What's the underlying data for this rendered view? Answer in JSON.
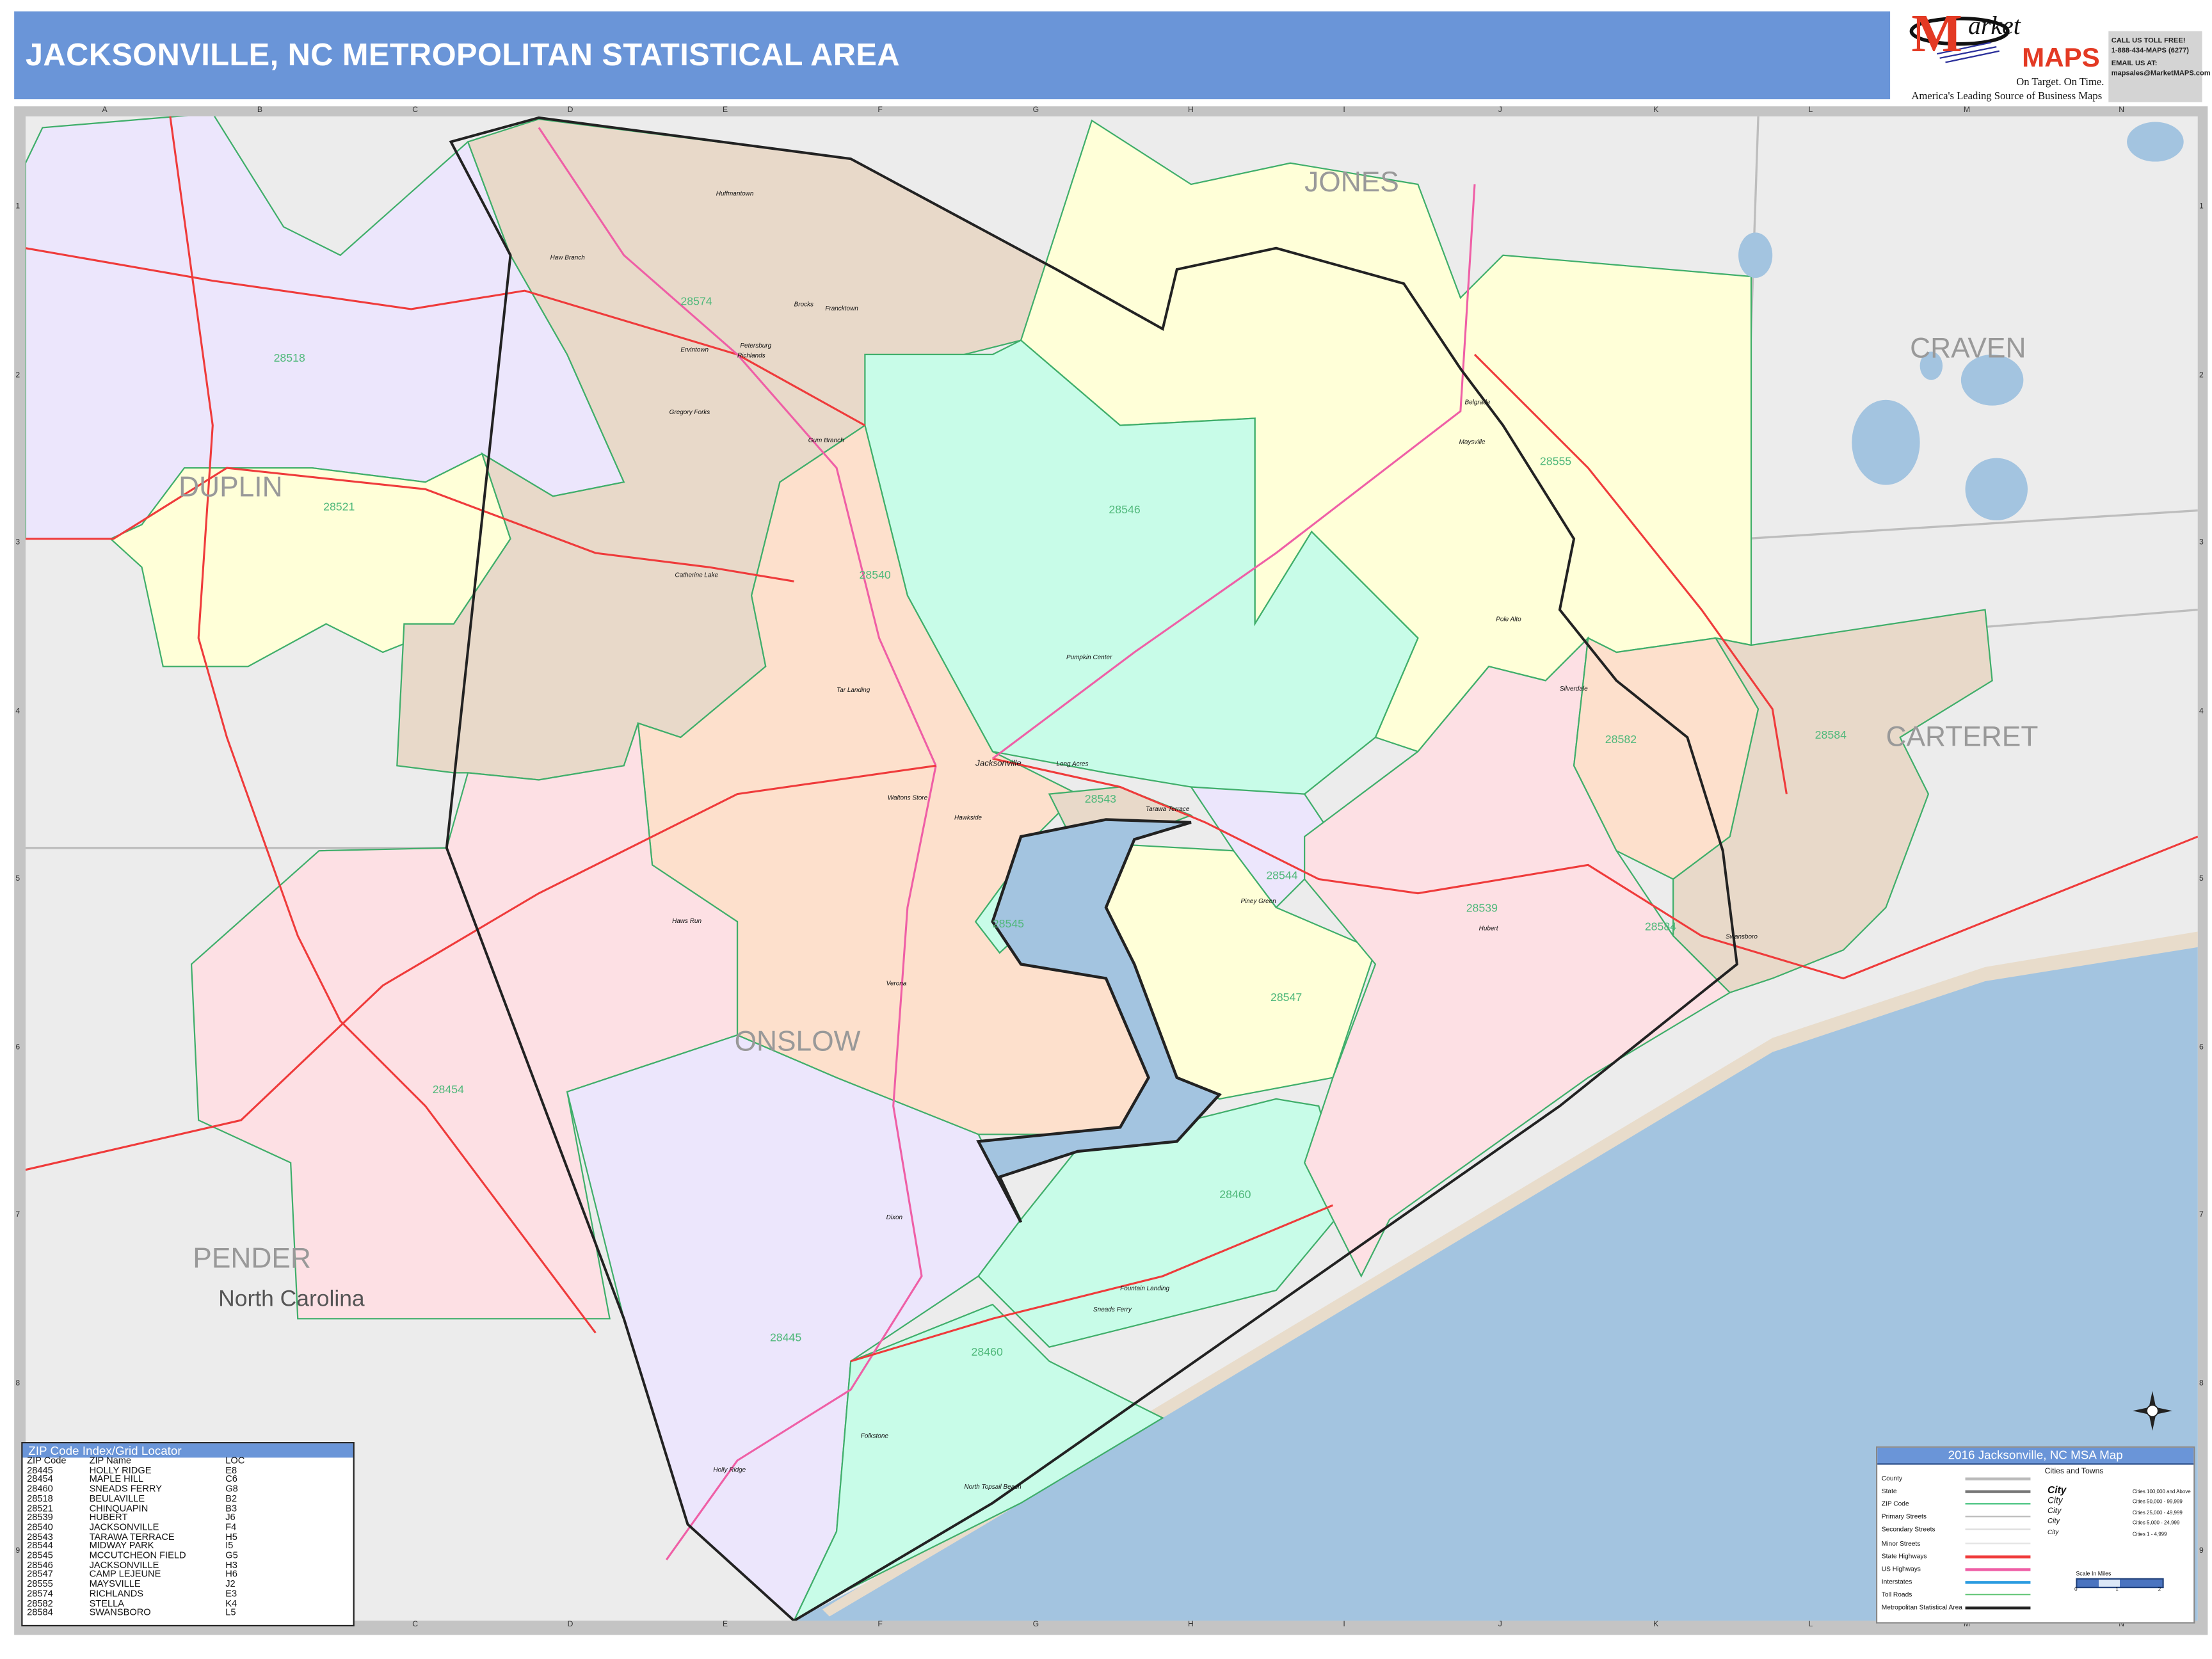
{
  "header": {
    "title": "JACKSONVILLE, NC METROPOLITAN STATISTICAL AREA"
  },
  "logo": {
    "brand_letter": "M",
    "brand_word": "arket",
    "brand_maps": "MAPS",
    "tagline": "On Target.  On Time.",
    "subtitle": "America's Leading Source of  Business Maps"
  },
  "contact": {
    "line1": "CALL US TOLL FREE!",
    "line2": "1-888-434-MAPS (6277)",
    "line3": "EMAIL US AT:",
    "line4": "mapsales@MarketMAPS.com"
  },
  "grid": {
    "columns": [
      "A",
      "B",
      "C",
      "D",
      "E",
      "F",
      "G",
      "H",
      "I",
      "J",
      "K",
      "L",
      "M",
      "N"
    ],
    "rows": [
      "1",
      "2",
      "3",
      "4",
      "5",
      "6",
      "7",
      "8",
      "9"
    ]
  },
  "colors": {
    "header": "#6a95d8",
    "zip_border": "#3fae6a",
    "msa_border": "#222222",
    "water": "#a3c4e0",
    "land": "#ececec",
    "state_hwy": "#ef3b3b",
    "us_hwy": "#ef5fa6"
  },
  "map": {
    "counties": [
      "JONES",
      "CRAVEN",
      "DUPLIN",
      "CARTERET",
      "ONSLOW",
      "PENDER"
    ],
    "state": "North Carolina",
    "zip_labels": [
      "28574",
      "28518",
      "28521",
      "28540",
      "28546",
      "28555",
      "28582",
      "28584",
      "28543",
      "28544",
      "28539",
      "28547",
      "28454",
      "28445",
      "28460",
      "28460",
      "28545",
      "28584"
    ],
    "places": [
      "Haw Branch",
      "Huffmantown",
      "Petersburg",
      "Brocks",
      "Francktown",
      "Ervintown",
      "Richlands",
      "Gregory Forks",
      "Gum Branch",
      "Tar Landing",
      "Jacksonville",
      "Hawkside",
      "Long Acres",
      "Pumpkin Center",
      "Tarawa Terrace",
      "Piney Green",
      "Waltons Store",
      "Hubert",
      "Maysville",
      "Belgrade",
      "Pole Alto",
      "Silverdale",
      "Swansboro",
      "Sneads Ferry",
      "Holly Ridge",
      "Folkstone",
      "Dixon",
      "Verona",
      "Catherine Lake",
      "Haws Run",
      "Fountain Landing",
      "North Topsail Beach"
    ]
  },
  "zip_index": {
    "title": "ZIP Code Index/Grid Locator",
    "headers": [
      "ZIP Code",
      "ZIP Name",
      "LOC"
    ],
    "rows": [
      [
        "28445",
        "HOLLY RIDGE",
        "E8"
      ],
      [
        "28454",
        "MAPLE HILL",
        "C6"
      ],
      [
        "28460",
        "SNEADS FERRY",
        "G8"
      ],
      [
        "28518",
        "BEULAVILLE",
        "B2"
      ],
      [
        "28521",
        "CHINQUAPIN",
        "B3"
      ],
      [
        "28539",
        "HUBERT",
        "J6"
      ],
      [
        "28540",
        "JACKSONVILLE",
        "F4"
      ],
      [
        "28543",
        "TARAWA TERRACE",
        "H5"
      ],
      [
        "28544",
        "MIDWAY PARK",
        "I5"
      ],
      [
        "28545",
        "MCCUTCHEON FIELD",
        "G5"
      ],
      [
        "28546",
        "JACKSONVILLE",
        "H3"
      ],
      [
        "28547",
        "CAMP LEJEUNE",
        "H6"
      ],
      [
        "28555",
        "MAYSVILLE",
        "J2"
      ],
      [
        "28574",
        "RICHLANDS",
        "E3"
      ],
      [
        "28582",
        "STELLA",
        "K4"
      ],
      [
        "28584",
        "SWANSBORO",
        "L5"
      ]
    ]
  },
  "legend": {
    "title": "2016 Jacksonville, NC MSA Map",
    "items": [
      "County",
      "State",
      "ZIP Code",
      "Primary Streets",
      "Secondary Streets",
      "Minor Streets",
      "State Highways",
      "US Highways",
      "Interstates",
      "Toll Roads",
      "Metropolitan Statistical Area"
    ],
    "cities_title": "Cities and Towns",
    "city_word": "City",
    "city_classes": [
      "Cities 100,000 and Above",
      "Cities 50,000 - 99,999",
      "Cities 25,000 - 49,999",
      "Cities 5,000 - 24,999",
      "Cities 1 - 4,999"
    ],
    "shield_us": "123",
    "shield_interstate": "123",
    "scale_title": "Scale In Miles",
    "scale_ticks": [
      "0",
      "1",
      "2"
    ]
  }
}
